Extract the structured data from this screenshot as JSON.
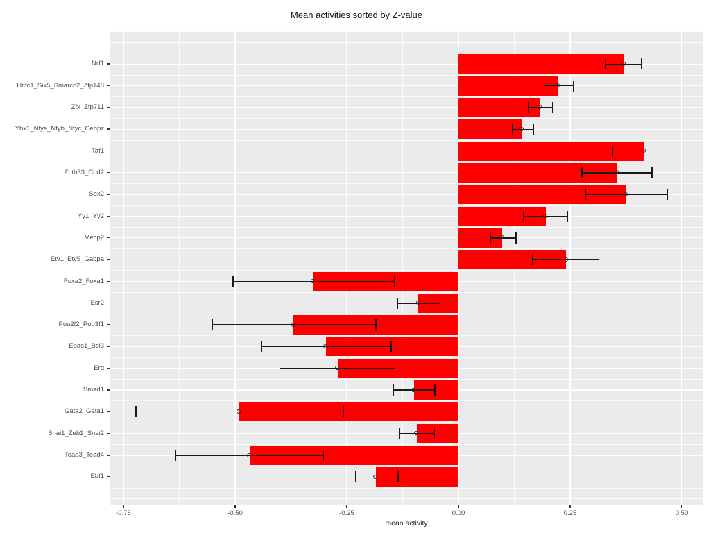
{
  "title": "Mean activities sorted by Z-value",
  "chart_data": {
    "type": "bar",
    "orientation": "horizontal",
    "title": "Mean activities sorted by Z-value",
    "xlabel": "mean activity",
    "ylabel": "",
    "legend_position": "none",
    "grid": true,
    "xlim": [
      -0.785,
      0.548
    ],
    "x_major_ticks": [
      -0.75,
      -0.5,
      -0.25,
      0,
      0.25,
      0.5
    ],
    "x_tick_labels": [
      "-0.75",
      "-0.50",
      "-0.25",
      "0.00",
      "0.25",
      "0.50"
    ],
    "x_minor_ticks": [
      -0.625,
      -0.375,
      -0.125,
      0.125,
      0.375
    ],
    "categories": [
      "Nrf1",
      "Hcfc1_Six5_Smarcc2_Zfp143",
      "Zfx_Zfp711",
      "Ybx1_Nfya_Nfyb_Nfyc_Cebpz",
      "Taf1",
      "Zbtb33_Chd2",
      "Sox2",
      "Yy1_Yy2",
      "Mecp2",
      "Etv1_Etv5_Gabpa",
      "Foxa2_Foxa1",
      "Esr2",
      "Pou2f2_Pou3f1",
      "Epas1_Bcl3",
      "Erg",
      "Smad1",
      "Gata2_Gata1",
      "Snai1_Zeb1_Snai2",
      "Tead3_Tead4",
      "Ebf1"
    ],
    "values": [
      0.37,
      0.222,
      0.183,
      0.142,
      0.415,
      0.354,
      0.375,
      0.195,
      0.098,
      0.241,
      -0.325,
      -0.09,
      -0.369,
      -0.297,
      -0.271,
      -0.1,
      -0.491,
      -0.094,
      -0.468,
      -0.185
    ],
    "error_low": [
      0.33,
      0.192,
      0.157,
      0.12,
      0.345,
      0.276,
      0.284,
      0.146,
      0.071,
      0.166,
      -0.505,
      -0.136,
      -0.551,
      -0.44,
      -0.4,
      -0.146,
      -0.722,
      -0.132,
      -0.634,
      -0.23
    ],
    "error_high": [
      0.41,
      0.257,
      0.211,
      0.168,
      0.487,
      0.433,
      0.467,
      0.244,
      0.129,
      0.314,
      -0.144,
      -0.041,
      -0.185,
      -0.151,
      -0.142,
      -0.053,
      -0.258,
      -0.054,
      -0.303,
      -0.135
    ],
    "colors": {
      "bar_fill": "#FF0000",
      "panel_background": "#EBEBEB",
      "gridline": "#FFFFFF",
      "error_bar": "#1A1A1A",
      "axis_text": "#4D4D4D",
      "title_text": "#111111"
    }
  }
}
